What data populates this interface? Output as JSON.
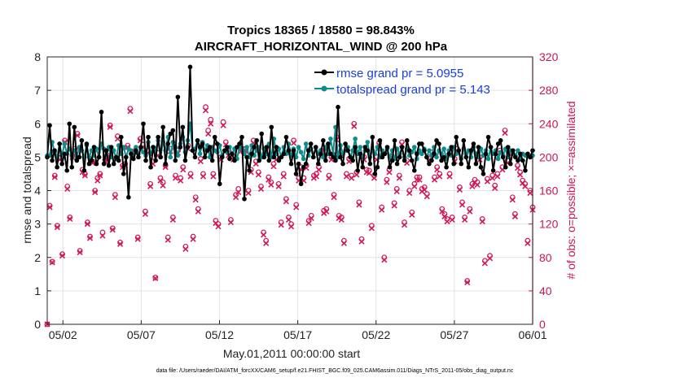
{
  "chart_data": {
    "type": "line",
    "title_line1": "Tropics 18365 / 18580 = 98.843%",
    "title_line2": "AIRCRAFT_HORIZONTAL_WIND @ 200 hPa",
    "xlabel": "May.01,2011 00:00:00 start",
    "ylabel_left": "rmse and totalspread",
    "ylabel_right": "# of obs: o=possible; ×=assimilated",
    "footer": "data file: /Users/raeder/DAI/ATM_forcXX/CAM6_setup/f.e21.FHIST_BGC.f09_025.CAM6assim.011/Diags_NTrS_2011-05/obs_diag_output.nc",
    "xlim": [
      0,
      31
    ],
    "ylim_left": [
      0,
      8
    ],
    "ylim_right": [
      0,
      320
    ],
    "x_ticks": [
      1,
      6,
      11,
      16,
      21,
      26,
      31
    ],
    "x_tick_labels": [
      "05/02",
      "05/07",
      "05/12",
      "05/17",
      "05/22",
      "05/27",
      "06/01"
    ],
    "y_ticks_left": [
      "0",
      "1",
      "2",
      "3",
      "4",
      "5",
      "6",
      "7",
      "8"
    ],
    "y_ticks_right": [
      "0",
      "40",
      "80",
      "120",
      "160",
      "200",
      "240",
      "280",
      "320"
    ],
    "colors": {
      "rmse": "#000000",
      "spread": "#0e8c8c",
      "obs": "#d1195a",
      "legend_text": "#1a3fd8"
    },
    "series": [
      {
        "name": "rmse grand pr = 5.0955",
        "values": [
          5.0,
          5.95,
          4.9,
          5.2,
          4.7,
          5.4,
          4.8,
          5.1,
          4.6,
          6.0,
          4.7,
          5.9,
          4.9,
          5.0,
          5.5,
          4.6,
          5.4,
          4.8,
          4.9,
          5.3,
          4.8,
          5.0,
          6.35,
          4.8,
          5.2,
          4.75,
          5.3,
          4.8,
          5.0,
          4.9,
          5.6,
          4.5,
          5.0,
          3.8,
          5.1,
          4.95,
          5.2,
          5.0,
          5.3,
          6.0,
          4.9,
          5.6,
          4.7,
          5.3,
          4.9,
          5.6,
          5.0,
          5.9,
          4.8,
          5.4,
          5.7,
          5.8,
          4.9,
          6.8,
          5.3,
          5.9,
          4.9,
          5.3,
          7.7,
          5.2,
          5.0,
          5.5,
          5.3,
          5.4,
          5.0,
          5.2,
          5.3,
          4.9,
          5.6,
          5.4,
          4.2,
          5.0,
          5.2,
          5.3,
          4.95,
          5.1,
          4.9,
          5.3,
          5.4,
          5.6,
          3.75,
          5.0,
          4.6,
          5.1,
          5.3,
          5.5,
          4.9,
          5.7,
          5.0,
          5.3,
          4.9,
          5.9,
          5.0,
          5.3,
          4.9,
          5.0,
          5.1,
          5.6,
          5.2,
          4.8,
          5.2,
          4.5,
          4.8,
          4.2,
          4.7,
          4.8,
          5.2,
          5.4,
          5.0,
          5.3,
          4.8,
          5.1,
          5.5,
          4.9,
          5.4,
          5.1,
          5.0,
          4.9,
          6.5,
          5.0,
          4.8,
          5.4,
          5.2,
          5.0,
          4.9,
          5.3,
          4.6,
          5.1,
          4.7,
          5.3,
          5.2,
          4.8,
          5.6,
          4.5,
          4.7,
          5.5,
          5.0,
          5.1,
          5.3,
          4.7,
          4.9,
          5.5,
          4.8,
          5.0,
          5.3,
          4.9,
          5.5,
          5.2,
          4.9,
          4.6,
          5.1,
          5.4,
          5.4,
          5.2,
          5.0,
          4.8,
          4.9,
          5.1,
          5.5,
          5.4,
          4.9,
          5.0,
          4.7,
          5.1,
          5.3,
          4.8,
          5.6,
          5.2,
          4.8,
          5.5,
          5.0,
          4.7,
          5.2,
          5.4,
          4.8,
          5.3,
          4.7,
          4.5,
          5.1,
          5.6,
          5.3,
          4.6,
          5.1,
          5.4,
          5.5,
          5.0,
          4.7,
          5.3,
          4.8,
          5.2,
          5.0,
          4.9,
          5.1,
          4.9,
          4.6,
          5.1,
          5.0,
          5.2
        ]
      },
      {
        "name": "totalspread grand pr = 5.143",
        "values": [
          5.05,
          5.05,
          5.45,
          5.15,
          5.0,
          5.4,
          5.05,
          5.4,
          5.1,
          5.25,
          5.05,
          5.2,
          5.0,
          5.3,
          5.2,
          5.0,
          5.35,
          5.0,
          5.2,
          5.05,
          5.25,
          5.0,
          5.4,
          5.25,
          5.05,
          5.3,
          5.0,
          5.2,
          4.95,
          5.35,
          5.1,
          5.3,
          5.0,
          5.25,
          5.2,
          5.05,
          5.3,
          5.1,
          5.25,
          5.15,
          5.05,
          5.45,
          5.1,
          5.3,
          5.2,
          5.5,
          5.0,
          5.45,
          5.2,
          5.6,
          5.0,
          5.45,
          5.3,
          5.05,
          5.4,
          5.6,
          5.15,
          5.5,
          6.0,
          5.2,
          5.25,
          5.5,
          5.1,
          5.45,
          5.2,
          5.35,
          5.0,
          5.3,
          5.2,
          5.15,
          5.35,
          5.05,
          5.2,
          5.15,
          5.3,
          5.1,
          5.25,
          4.95,
          5.3,
          5.25,
          5.1,
          5.3,
          5.0,
          5.35,
          5.05,
          5.2,
          5.3,
          5.0,
          5.25,
          5.1,
          5.4,
          5.0,
          5.55,
          5.1,
          5.25,
          5.0,
          5.3,
          5.1,
          5.4,
          5.05,
          5.25,
          5.0,
          5.3,
          5.15,
          4.95,
          5.4,
          5.05,
          5.25,
          5.0,
          5.3,
          5.1,
          5.2,
          5.0,
          5.3,
          5.1,
          5.55,
          5.1,
          5.9,
          5.0,
          5.35,
          5.1,
          5.2,
          5.3,
          5.0,
          5.2,
          5.55,
          5.1,
          5.3,
          5.0,
          5.2,
          5.45,
          5.0,
          5.2,
          5.1,
          5.3,
          5.0,
          5.2,
          5.1,
          5.25,
          5.0,
          5.2,
          4.95,
          5.25,
          5.1,
          5.3,
          5.0,
          5.25,
          5.05,
          5.15,
          5.3,
          4.95,
          5.2,
          5.1,
          5.25,
          5.0,
          5.2,
          5.05,
          5.3,
          5.0,
          5.2,
          5.1,
          5.25,
          4.95,
          5.2,
          5.05,
          5.3,
          5.1,
          5.2,
          4.95,
          5.25,
          5.1,
          5.2,
          5.0,
          5.3,
          5.1,
          5.0,
          5.25,
          5.05,
          5.2,
          4.95,
          5.3,
          5.1,
          5.2,
          4.95,
          5.15,
          5.05,
          5.25,
          5.0,
          5.2,
          5.1,
          5.05,
          5.2,
          4.95,
          5.1,
          5.05,
          5.1,
          5.0,
          5.05
        ]
      },
      {
        "name": "possible",
        "axis": "right",
        "marker": "circle",
        "values": [
          0,
          142,
          75,
          178,
          118,
          199,
          84,
          220,
          165,
          128,
          202,
          210,
          228,
          88,
          185,
          180,
          122,
          105,
          195,
          160,
          175,
          180,
          110,
          197,
          202,
          238,
          115,
          155,
          225,
          98,
          190,
          192,
          214,
          258,
          203,
          208,
          104,
          222,
          215,
          135,
          208,
          168,
          195,
          56,
          205,
          175,
          170,
          190,
          104,
          210,
          128,
          178,
          208,
          175,
          188,
          93,
          214,
          180,
          105,
          152,
          138,
          198,
          180,
          260,
          232,
          245,
          180,
          124,
          120,
          200,
          242,
          218,
          205,
          125,
          200,
          155,
          162,
          210,
          210,
          210,
          160,
          185,
          220,
          195,
          182,
          165,
          110,
          100,
          176,
          170,
          192,
          200,
          168,
          122,
          180,
          150,
          128,
          120,
          220,
          143,
          175,
          188,
          175,
          190,
          124,
          130,
          178,
          180,
          188,
          208,
          136,
          138,
          178,
          200,
          155,
          224,
          130,
          128,
          100,
          180,
          198,
          178,
          240,
          182,
          146,
          102,
          200,
          185,
          184,
          118,
          178,
          200,
          217,
          140,
          80,
          173,
          185,
          200,
          145,
          162,
          178,
          218,
          122,
          196,
          160,
          134,
          168,
          176,
          176,
          162,
          164,
          156,
          200,
          206,
          176,
          188,
          180,
          138,
          132,
          126,
          180,
          128,
          198,
          210,
          164,
          146,
          128,
          52,
          138,
          168,
          173,
          170,
          200,
          126,
          76,
          174,
          82,
          178,
          166,
          180,
          208,
          188,
          232,
          196,
          206,
          152,
          132,
          190,
          182,
          172,
          168,
          100,
          160,
          140
        ]
      },
      {
        "name": "assimilated",
        "axis": "right",
        "marker": "x",
        "values": [
          0,
          140,
          74,
          176,
          116,
          197,
          82,
          218,
          162,
          126,
          200,
          208,
          226,
          86,
          182,
          178,
          120,
          103,
          193,
          158,
          172,
          178,
          106,
          195,
          200,
          236,
          113,
          152,
          222,
          96,
          188,
          190,
          212,
          255,
          201,
          205,
          102,
          220,
          212,
          132,
          205,
          165,
          192,
          55,
          202,
          172,
          166,
          188,
          101,
          207,
          125,
          175,
          205,
          172,
          185,
          90,
          210,
          177,
          102,
          149,
          135,
          195,
          177,
          256,
          228,
          240,
          177,
          121,
          117,
          197,
          238,
          215,
          202,
          122,
          197,
          152,
          158,
          207,
          207,
          207,
          157,
          182,
          217,
          192,
          179,
          162,
          107,
          97,
          173,
          167,
          189,
          197,
          165,
          119,
          177,
          147,
          125,
          117,
          217,
          140,
          172,
          185,
          172,
          187,
          121,
          127,
          175,
          177,
          185,
          205,
          133,
          135,
          175,
          197,
          152,
          221,
          127,
          125,
          97,
          177,
          195,
          175,
          237,
          179,
          143,
          99,
          197,
          182,
          181,
          115,
          175,
          197,
          214,
          137,
          77,
          170,
          182,
          197,
          142,
          159,
          175,
          215,
          119,
          193,
          157,
          131,
          165,
          173,
          173,
          159,
          161,
          153,
          197,
          203,
          173,
          185,
          177,
          135,
          129,
          123,
          177,
          125,
          195,
          207,
          161,
          143,
          125,
          50,
          135,
          165,
          170,
          167,
          197,
          123,
          73,
          171,
          79,
          175,
          163,
          177,
          205,
          185,
          229,
          193,
          203,
          149,
          129,
          187,
          179,
          169,
          165,
          97,
          157,
          137
        ]
      }
    ]
  }
}
